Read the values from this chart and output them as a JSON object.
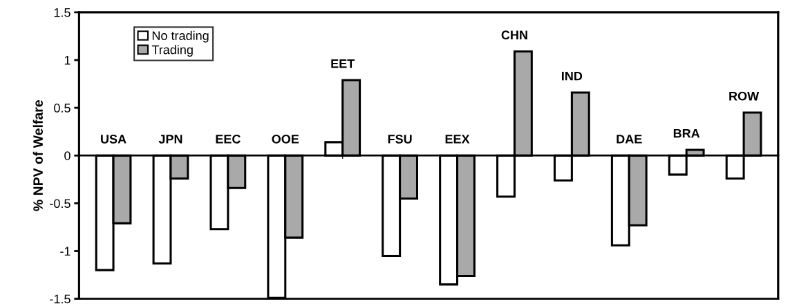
{
  "chart_data": {
    "type": "bar",
    "ylabel": "% NPV of Welfare",
    "categories": [
      "USA",
      "JPN",
      "EEC",
      "OOE",
      "EET",
      "FSU",
      "EEX",
      "CHN",
      "IND",
      "DAE",
      "BRA",
      "ROW"
    ],
    "series": [
      {
        "name": "No trading",
        "color": "#ffffff",
        "values": [
          -1.2,
          -1.13,
          -0.77,
          -1.49,
          0.14,
          -1.05,
          -1.35,
          -0.43,
          -0.26,
          -0.94,
          -0.2,
          -0.24
        ]
      },
      {
        "name": "Trading",
        "color": "#a9a9a9",
        "values": [
          -0.71,
          -0.24,
          -0.34,
          -0.86,
          0.79,
          -0.45,
          -1.26,
          1.09,
          0.66,
          -0.73,
          0.06,
          0.45
        ]
      }
    ],
    "ylim": [
      -1.5,
      1.5
    ],
    "yticks": [
      -1.5,
      -1,
      -0.5,
      0,
      0.5,
      1,
      1.5
    ],
    "grid": false,
    "legend": "top left",
    "tick_labels": "y"
  }
}
